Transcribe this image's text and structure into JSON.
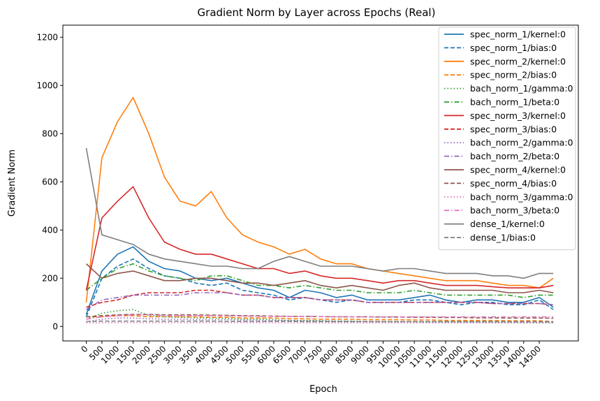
{
  "chart_data": {
    "type": "line",
    "title": "Gradient Norm by Layer across Epochs (Real)",
    "xlabel": "Epoch",
    "ylabel": "Gradient Norm",
    "xlim": [
      -750,
      15750
    ],
    "ylim": [
      -60,
      1250
    ],
    "x_ticks": [
      0,
      500,
      1000,
      1500,
      2000,
      2500,
      3000,
      3500,
      4000,
      4500,
      5000,
      5500,
      6000,
      6500,
      7000,
      7500,
      8000,
      8500,
      9000,
      9500,
      10000,
      10500,
      11000,
      11500,
      12000,
      12500,
      13000,
      13500,
      14000,
      14500
    ],
    "y_ticks": [
      0,
      200,
      400,
      600,
      800,
      1000,
      1200
    ],
    "grid": false,
    "legend_position": "top-right",
    "x": [
      0,
      500,
      1000,
      1500,
      2000,
      2500,
      3000,
      3500,
      4000,
      4500,
      5000,
      5500,
      6000,
      6500,
      7000,
      7500,
      8000,
      8500,
      9000,
      9500,
      10000,
      10500,
      11000,
      11500,
      12000,
      12500,
      13000,
      13500,
      14000,
      14500,
      14950
    ],
    "series": [
      {
        "name": "spec_norm_1/kernel:0",
        "color": "#1f77b4",
        "dash": "solid",
        "values": [
          50,
          230,
          300,
          330,
          270,
          240,
          230,
          200,
          190,
          200,
          180,
          160,
          150,
          120,
          150,
          140,
          120,
          130,
          110,
          110,
          110,
          120,
          130,
          110,
          100,
          110,
          110,
          100,
          100,
          120,
          80
        ]
      },
      {
        "name": "spec_norm_1/bias:0",
        "color": "#1f77b4",
        "dash": "dashed",
        "values": [
          40,
          200,
          250,
          280,
          240,
          210,
          200,
          180,
          170,
          180,
          150,
          140,
          130,
          110,
          120,
          110,
          100,
          110,
          100,
          100,
          100,
          110,
          110,
          100,
          90,
          100,
          100,
          90,
          90,
          110,
          70
        ]
      },
      {
        "name": "spec_norm_2/kernel:0",
        "color": "#ff7f0e",
        "dash": "solid",
        "values": [
          100,
          700,
          850,
          950,
          800,
          620,
          520,
          500,
          560,
          450,
          380,
          350,
          330,
          300,
          320,
          280,
          260,
          260,
          240,
          230,
          220,
          210,
          200,
          190,
          190,
          190,
          180,
          170,
          170,
          160,
          200
        ]
      },
      {
        "name": "spec_norm_2/bias:0",
        "color": "#ff7f0e",
        "dash": "dashed",
        "values": [
          40,
          40,
          45,
          45,
          40,
          40,
          40,
          40,
          38,
          38,
          35,
          35,
          35,
          32,
          32,
          30,
          30,
          30,
          28,
          28,
          28,
          27,
          27,
          25,
          25,
          25,
          25,
          24,
          24,
          24,
          20
        ]
      },
      {
        "name": "bach_norm_1/gamma:0",
        "color": "#2ca02c",
        "dash": "dotted",
        "values": [
          30,
          55,
          65,
          70,
          45,
          40,
          38,
          35,
          35,
          33,
          30,
          30,
          28,
          25,
          25,
          24,
          22,
          22,
          20,
          20,
          20,
          20,
          18,
          18,
          18,
          18,
          17,
          17,
          16,
          16,
          15
        ]
      },
      {
        "name": "bach_norm_1/beta:0",
        "color": "#2ca02c",
        "dash": "dashdot",
        "values": [
          150,
          200,
          240,
          260,
          230,
          210,
          200,
          190,
          210,
          210,
          190,
          170,
          170,
          160,
          170,
          160,
          150,
          150,
          140,
          140,
          140,
          150,
          140,
          130,
          130,
          130,
          130,
          130,
          120,
          130,
          130
        ]
      },
      {
        "name": "spec_norm_3/kernel:0",
        "color": "#d62728",
        "dash": "solid",
        "values": [
          150,
          450,
          520,
          580,
          450,
          350,
          320,
          300,
          300,
          280,
          260,
          240,
          240,
          220,
          230,
          210,
          200,
          200,
          190,
          180,
          190,
          190,
          180,
          170,
          170,
          170,
          165,
          160,
          160,
          160,
          170
        ]
      },
      {
        "name": "spec_norm_3/bias:0",
        "color": "#d62728",
        "dash": "dashed",
        "values": [
          80,
          100,
          110,
          130,
          140,
          140,
          140,
          150,
          150,
          140,
          130,
          130,
          120,
          120,
          120,
          110,
          110,
          110,
          100,
          100,
          100,
          100,
          100,
          100,
          100,
          100,
          95,
          95,
          95,
          95,
          90
        ]
      },
      {
        "name": "bach_norm_2/gamma:0",
        "color": "#9467bd",
        "dash": "dotted",
        "values": [
          20,
          30,
          35,
          35,
          32,
          30,
          30,
          28,
          28,
          28,
          26,
          26,
          25,
          24,
          24,
          23,
          22,
          22,
          21,
          21,
          20,
          20,
          20,
          19,
          19,
          19,
          18,
          18,
          18,
          18,
          17
        ]
      },
      {
        "name": "bach_norm_2/beta:0",
        "color": "#9467bd",
        "dash": "dashdot",
        "values": [
          70,
          110,
          120,
          130,
          130,
          130,
          130,
          140,
          140,
          140,
          130,
          130,
          120,
          120,
          120,
          110,
          110,
          110,
          100,
          100,
          100,
          100,
          100,
          100,
          100,
          100,
          95,
          95,
          95,
          95,
          90
        ]
      },
      {
        "name": "spec_norm_4/kernel:0",
        "color": "#8c564b",
        "dash": "solid",
        "values": [
          260,
          200,
          220,
          230,
          210,
          190,
          190,
          200,
          200,
          190,
          180,
          180,
          170,
          180,
          190,
          170,
          160,
          170,
          160,
          150,
          170,
          180,
          160,
          150,
          150,
          150,
          150,
          140,
          140,
          150,
          140
        ]
      },
      {
        "name": "spec_norm_4/bias:0",
        "color": "#8c564b",
        "dash": "dashed",
        "values": [
          40,
          45,
          48,
          50,
          50,
          48,
          48,
          48,
          47,
          46,
          45,
          44,
          43,
          42,
          42,
          41,
          40,
          40,
          40,
          39,
          39,
          38,
          38,
          37,
          37,
          36,
          36,
          35,
          35,
          35,
          34
        ]
      },
      {
        "name": "bach_norm_3/gamma:0",
        "color": "#e377c2",
        "dash": "dotted",
        "values": [
          15,
          15,
          16,
          16,
          16,
          16,
          16,
          16,
          16,
          16,
          16,
          16,
          15,
          15,
          15,
          15,
          15,
          15,
          15,
          15,
          15,
          15,
          15,
          15,
          15,
          15,
          15,
          15,
          15,
          15,
          15
        ]
      },
      {
        "name": "bach_norm_3/beta:0",
        "color": "#e377c2",
        "dash": "dashdot",
        "values": [
          30,
          40,
          45,
          48,
          48,
          45,
          45,
          45,
          45,
          44,
          43,
          42,
          42,
          42,
          42,
          41,
          40,
          40,
          40,
          40,
          40,
          40,
          40,
          40,
          40,
          40,
          40,
          40,
          40,
          40,
          40
        ]
      },
      {
        "name": "dense_1/kernel:0",
        "color": "#7f7f7f",
        "dash": "solid",
        "values": [
          740,
          380,
          360,
          340,
          300,
          280,
          270,
          260,
          250,
          250,
          240,
          240,
          270,
          290,
          270,
          250,
          250,
          250,
          240,
          230,
          240,
          240,
          230,
          220,
          220,
          220,
          210,
          210,
          200,
          220,
          220
        ]
      },
      {
        "name": "dense_1/bias:0",
        "color": "#7f7f7f",
        "dash": "dashed",
        "values": [
          20,
          22,
          22,
          22,
          22,
          22,
          22,
          22,
          22,
          21,
          21,
          21,
          21,
          21,
          20,
          20,
          20,
          20,
          20,
          20,
          20,
          20,
          20,
          20,
          20,
          20,
          20,
          20,
          20,
          20,
          20
        ]
      }
    ]
  }
}
